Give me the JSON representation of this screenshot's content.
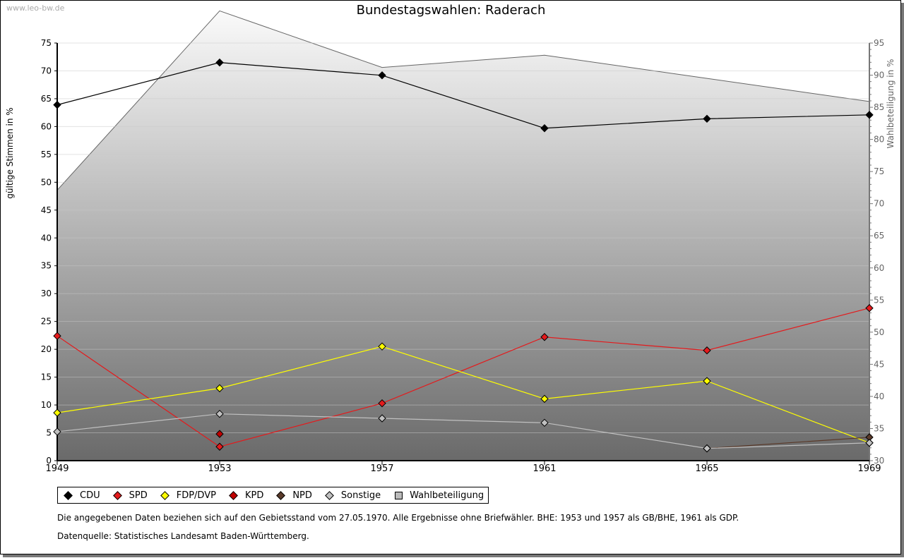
{
  "watermark": "www.leo-bw.de",
  "notes": [
    "Die angegebenen Daten beziehen sich auf den Gebietsstand vom 27.05.1970. Alle Ergebnisse ohne Briefwähler. BHE: 1953 und 1957 als GB/BHE, 1961 als GDP.",
    "Datenquelle: Statistisches Landesamt Baden-Württemberg."
  ],
  "chart_data": {
    "type": "line",
    "title": "Bundestagswahlen: Raderach",
    "ylabel": "gültige Stimmen in %",
    "y2label": "Wahlbeteiligung in %",
    "x": [
      "1949",
      "1953",
      "1957",
      "1961",
      "1965",
      "1969"
    ],
    "ylim": [
      0,
      75
    ],
    "yticks": [
      0,
      5,
      10,
      15,
      20,
      25,
      30,
      35,
      40,
      45,
      50,
      55,
      60,
      65,
      70,
      75
    ],
    "y2lim": [
      30,
      95
    ],
    "y2ticks": [
      30,
      35,
      40,
      45,
      50,
      55,
      60,
      65,
      70,
      75,
      80,
      85,
      90,
      95
    ],
    "legend_position": "bottom",
    "series": [
      {
        "name": "CDU",
        "color": "#000000",
        "values": [
          63.9,
          71.5,
          69.2,
          59.7,
          61.4,
          62.1
        ]
      },
      {
        "name": "SPD",
        "color": "#e41a1c",
        "values": [
          22.4,
          2.5,
          10.3,
          22.2,
          19.8,
          27.4
        ]
      },
      {
        "name": "FDP/DVP",
        "color": "#ffff00",
        "values": [
          8.6,
          13.0,
          20.5,
          11.1,
          14.3,
          3.2
        ]
      },
      {
        "name": "KPD",
        "color": "#c00000",
        "values": [
          null,
          4.8,
          null,
          null,
          null,
          null
        ]
      },
      {
        "name": "NPD",
        "color": "#5a3a2a",
        "values": [
          null,
          null,
          null,
          null,
          2.2,
          4.2
        ]
      },
      {
        "name": "Sonstige",
        "color": "#c0c0c0",
        "values": [
          5.2,
          8.4,
          7.6,
          6.8,
          2.2,
          3.2
        ]
      }
    ],
    "area": {
      "name": "Wahlbeteiligung",
      "axis": "right",
      "values": [
        72.1,
        100.0,
        91.2,
        93.1,
        89.5,
        85.9
      ]
    }
  }
}
